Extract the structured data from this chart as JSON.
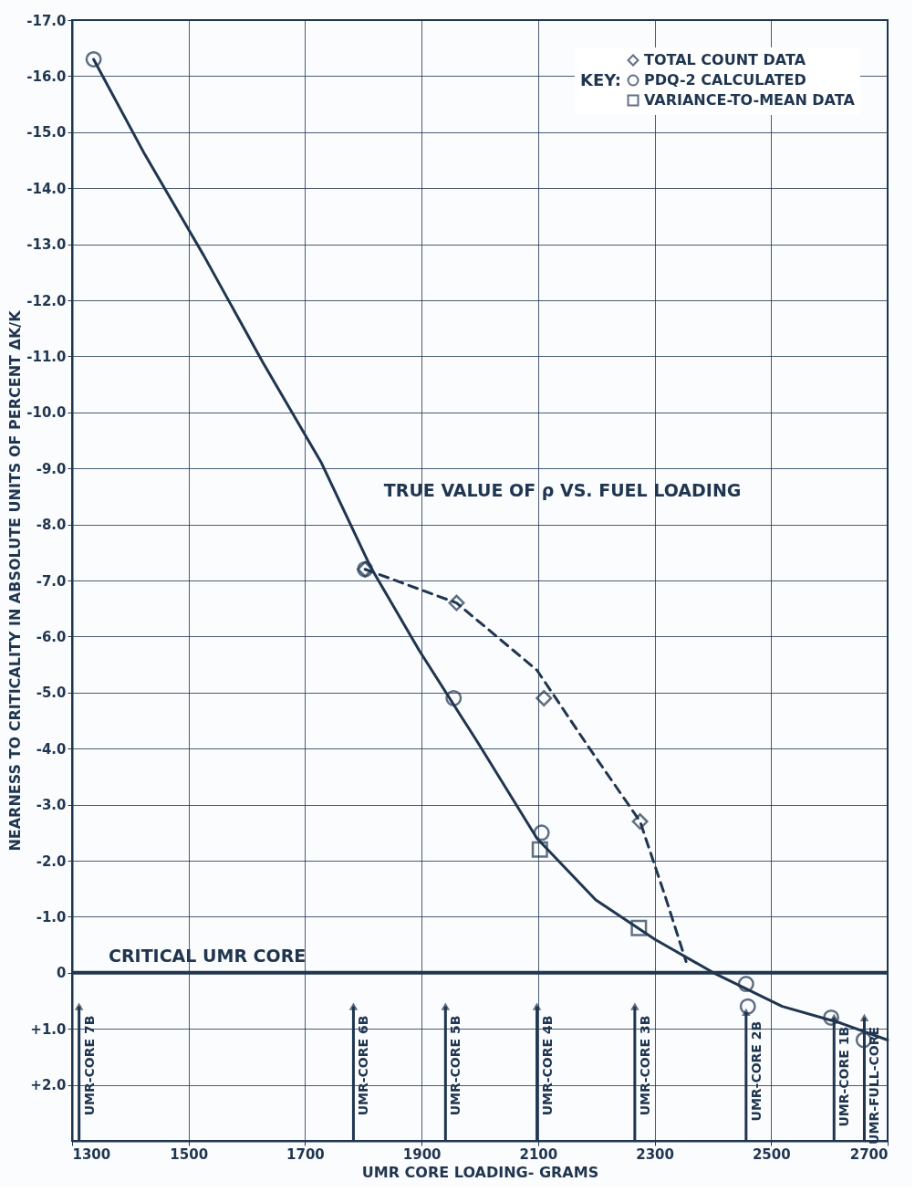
{
  "chart_data": {
    "type": "scatter",
    "xlabel": "UMR CORE LOADING- GRAMS",
    "ylabel": "NEARNESS TO CRITICALITY IN ABSOLUTE UNITS OF PERCENT ΔK/K",
    "legend_title": "KEY:",
    "legend": "top right",
    "grid": true,
    "xlim": [
      1300,
      2700
    ],
    "ylim": [
      3,
      -17
    ],
    "xticks": [
      1300,
      1500,
      1700,
      1900,
      2100,
      2300,
      2500,
      2700
    ],
    "yticks": [
      {
        "value": -17,
        "label": "-17.0"
      },
      {
        "value": -16,
        "label": "-16.0"
      },
      {
        "value": -15,
        "label": "-15.0"
      },
      {
        "value": -14,
        "label": "-14.0"
      },
      {
        "value": -13,
        "label": "-13.0"
      },
      {
        "value": -12,
        "label": "-12.0"
      },
      {
        "value": -11,
        "label": "-11.0"
      },
      {
        "value": -10,
        "label": "-10.0"
      },
      {
        "value": -9,
        "label": "-9.0"
      },
      {
        "value": -8,
        "label": "-8.0"
      },
      {
        "value": -7,
        "label": "-7.0"
      },
      {
        "value": -6,
        "label": "-6.0"
      },
      {
        "value": -5,
        "label": "-5.0"
      },
      {
        "value": -4,
        "label": "-4.0"
      },
      {
        "value": -3,
        "label": "-3.0"
      },
      {
        "value": -2,
        "label": "-2.0"
      },
      {
        "value": -1,
        "label": "-1.0"
      },
      0,
      {
        "value": 1,
        "label": "+1.0"
      },
      {
        "value": 2,
        "label": "+2.0"
      }
    ],
    "series": [
      {
        "type": "line",
        "color": "#1f3550",
        "marker": "none",
        "line_style": "solid",
        "x": [
          1337,
          1425,
          1526,
          1627,
          1728,
          1812,
          1896,
          1997,
          2098,
          2199,
          2300,
          2401,
          2519,
          2620,
          2700
        ],
        "values": [
          -16.3,
          -14.6,
          -12.8,
          -10.9,
          -9.1,
          -7.25,
          -5.75,
          -4.1,
          -2.4,
          -1.3,
          -0.6,
          0,
          0.6,
          0.9,
          1.2
        ]
      },
      {
        "type": "line",
        "color": "#1f3550",
        "marker": "none",
        "line_style": "dashed",
        "x": [
          1803,
          1960,
          2098,
          2182,
          2275,
          2317,
          2354
        ],
        "values": [
          -7.2,
          -6.6,
          -5.4,
          -4.1,
          -2.7,
          -1.4,
          -0.2
        ]
      },
      {
        "type": "scatter",
        "name": "TOTAL COUNT DATA",
        "color": "#1f3550",
        "marker": "diamond",
        "x": [
          1803,
          1960,
          2110,
          2275
        ],
        "values": [
          -7.2,
          -6.6,
          -4.9,
          -2.7
        ]
      },
      {
        "type": "scatter",
        "name": "PDQ-2 CALCULATED",
        "color": "#1f3550",
        "marker": "circle",
        "x": [
          1337,
          1803,
          1955,
          2106,
          2457,
          2460,
          2603,
          2659
        ],
        "values": [
          -16.3,
          -7.2,
          -4.9,
          -2.5,
          0.2,
          0.6,
          0.8,
          1.2
        ]
      },
      {
        "type": "scatter",
        "name": "VARIANCE-TO-MEAN DATA",
        "color": "#1f3550",
        "marker": "square",
        "x": [
          2103,
          2273
        ],
        "values": [
          -2.2,
          -0.8
        ]
      }
    ],
    "ref_lines": [
      {
        "axis": "y",
        "value": 0,
        "label": "CRITICAL UMR CORE",
        "color": "#1f3550"
      }
    ],
    "annotations": [
      {
        "text": "TRUE VALUE OF ρ VS. FUEL LOADING",
        "x": 1757,
        "y": -8.3
      },
      {
        "text": "UMR-CORE 7B",
        "x": 1312,
        "y": 0.6
      },
      {
        "text": "UMR-CORE 6B",
        "x": 1783,
        "y": 0.6
      },
      {
        "text": "UMR-CORE 5B",
        "x": 1941,
        "y": 0.6
      },
      {
        "text": "UMR-CORE 4B",
        "x": 2098,
        "y": 0.6
      },
      {
        "text": "UMR-CORE 3B",
        "x": 2266,
        "y": 0.6
      },
      {
        "text": "UMR-CORE 2B",
        "x": 2457,
        "y": 0.7
      },
      {
        "text": "UMR-CORE 1B",
        "x": 2608,
        "y": 0.8
      },
      {
        "text": "UMR-FULL-CORE",
        "x": 2660,
        "y": 0.8
      }
    ]
  }
}
